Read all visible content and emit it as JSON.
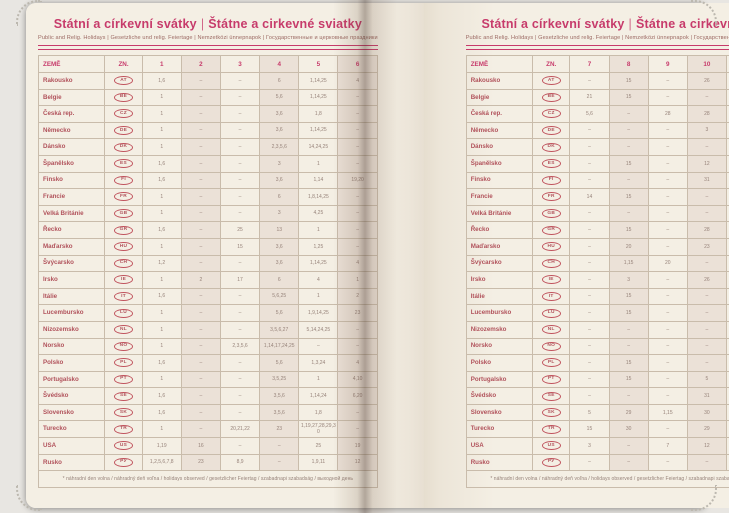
{
  "colors": {
    "accent": "#c73b6b",
    "country_text": "#b1525b",
    "value_text": "#97837a",
    "page_cream": "#f3eee3",
    "column_shade": "#ebe1d7"
  },
  "header": {
    "title_cs": "Státní a církevní svátky",
    "title_sk": "Štátne a cirkevné sviatky",
    "separator": "|",
    "subtitle": "Public and Relig. Holidays | Gesetzliche und relig. Feiertage | Nemzetközi ünnepnapok | Государственные и церковные праздники"
  },
  "table": {
    "col_country": "ZEMĚ",
    "col_code": "ZN.",
    "months_left": [
      "1",
      "2",
      "3",
      "4",
      "5",
      "6"
    ],
    "months_right": [
      "7",
      "8",
      "9",
      "10",
      "11",
      "12"
    ],
    "rows": [
      {
        "name": "Rakousko",
        "code": "AT",
        "m": [
          "1,6",
          "–",
          "–",
          "6",
          "1,14,25",
          "4",
          "–",
          "15",
          "–",
          "26",
          "1",
          "8,25,26"
        ]
      },
      {
        "name": "Belgie",
        "code": "BE",
        "m": [
          "1",
          "–",
          "–",
          "5,6",
          "1,14,25",
          "–",
          "21",
          "15",
          "–",
          "–",
          "1,11",
          "25"
        ]
      },
      {
        "name": "Česká rep.",
        "code": "CZ",
        "m": [
          "1",
          "–",
          "–",
          "3,6",
          "1,8",
          "–",
          "5,6",
          "–",
          "28",
          "28",
          "17",
          "24,25,26"
        ]
      },
      {
        "name": "Německo",
        "code": "DE",
        "m": [
          "1",
          "–",
          "–",
          "3,6",
          "1,14,25",
          "–",
          "–",
          "–",
          "–",
          "3",
          "–",
          "25,26"
        ]
      },
      {
        "name": "Dánsko",
        "code": "DK",
        "m": [
          "1",
          "–",
          "–",
          "2,3,5,6",
          "14,24,25",
          "–",
          "–",
          "–",
          "–",
          "–",
          "–",
          "25,26"
        ]
      },
      {
        "name": "Španělsko",
        "code": "ES",
        "m": [
          "1,6",
          "–",
          "–",
          "3",
          "1",
          "–",
          "–",
          "15",
          "–",
          "12",
          "1",
          "6,7,8,25"
        ]
      },
      {
        "name": "Finsko",
        "code": "FI",
        "m": [
          "1,6",
          "–",
          "–",
          "3,6",
          "1,14",
          "19,20",
          "–",
          "–",
          "–",
          "31",
          "–",
          "6,24,25,26"
        ]
      },
      {
        "name": "Francie",
        "code": "FR",
        "m": [
          "1",
          "–",
          "–",
          "6",
          "1,8,14,25",
          "–",
          "14",
          "15",
          "–",
          "–",
          "1,11",
          "25"
        ]
      },
      {
        "name": "Velká Británie",
        "code": "GB",
        "m": [
          "1",
          "–",
          "–",
          "3",
          "4,25",
          "–",
          "–",
          "–",
          "–",
          "–",
          "–",
          "25,26,28"
        ]
      },
      {
        "name": "Řecko",
        "code": "GR",
        "m": [
          "1,6",
          "–",
          "25",
          "13",
          "1",
          "–",
          "–",
          "15",
          "–",
          "28",
          "–",
          "25,26"
        ]
      },
      {
        "name": "Maďarsko",
        "code": "HU",
        "m": [
          "1",
          "–",
          "15",
          "3,6",
          "1,25",
          "–",
          "–",
          "20",
          "–",
          "23",
          "1",
          "25,26"
        ]
      },
      {
        "name": "Švýcarsko",
        "code": "CH",
        "m": [
          "1,2",
          "–",
          "–",
          "3,6",
          "1,14,25",
          "4",
          "–",
          "1,15",
          "20",
          "–",
          "1",
          "8,25,26"
        ]
      },
      {
        "name": "Irsko",
        "code": "IE",
        "m": [
          "1",
          "2",
          "17",
          "6",
          "4",
          "1",
          "–",
          "3",
          "–",
          "26",
          "–",
          "25,26"
        ]
      },
      {
        "name": "Itálie",
        "code": "IT",
        "m": [
          "1,6",
          "–",
          "–",
          "5,6,25",
          "1",
          "2",
          "–",
          "15",
          "–",
          "–",
          "1",
          "8,25,26"
        ]
      },
      {
        "name": "Lucembursko",
        "code": "LU",
        "m": [
          "1",
          "–",
          "–",
          "5,6",
          "1,9,14,25",
          "23",
          "–",
          "15",
          "–",
          "–",
          "1",
          "25,26"
        ]
      },
      {
        "name": "Nizozemsko",
        "code": "NL",
        "m": [
          "1",
          "–",
          "–",
          "3,5,6,27",
          "5,14,24,25",
          "–",
          "–",
          "–",
          "–",
          "–",
          "–",
          "25,26"
        ]
      },
      {
        "name": "Norsko",
        "code": "NO",
        "m": [
          "1",
          "–",
          "2,3,5,6",
          "1,14,17,24,25",
          "–",
          "–",
          "–",
          "–",
          "–",
          "–",
          "–",
          "25,26"
        ]
      },
      {
        "name": "Polsko",
        "code": "PL",
        "m": [
          "1,6",
          "–",
          "–",
          "5,6",
          "1,3,24",
          "4",
          "–",
          "15",
          "–",
          "–",
          "1,11",
          "25,26"
        ]
      },
      {
        "name": "Portugalsko",
        "code": "PT",
        "m": [
          "1",
          "–",
          "–",
          "3,5,25",
          "1",
          "4,10",
          "–",
          "15",
          "–",
          "5",
          "1",
          "1,8,25"
        ]
      },
      {
        "name": "Švédsko",
        "code": "SE",
        "m": [
          "1,6",
          "–",
          "–",
          "3,5,6",
          "1,14,24",
          "6,20",
          "–",
          "–",
          "–",
          "31",
          "–",
          "25,26"
        ]
      },
      {
        "name": "Slovensko",
        "code": "SK",
        "m": [
          "1,6",
          "–",
          "–",
          "3,5,6",
          "1,8",
          "–",
          "5",
          "29",
          "1,15",
          "30",
          "1,17",
          "24,25,26"
        ]
      },
      {
        "name": "Turecko",
        "code": "TR",
        "m": [
          "1",
          "–",
          "20,21,22",
          "23",
          "1,19,27,28,29,30",
          "–",
          "15",
          "30",
          "–",
          "29",
          "–",
          "–"
        ]
      },
      {
        "name": "USA",
        "code": "US",
        "m": [
          "1,19",
          "16",
          "–",
          "–",
          "25",
          "19",
          "3",
          "–",
          "7",
          "12",
          "11,26",
          "25"
        ]
      },
      {
        "name": "Rusko",
        "code": "РУ",
        "m": [
          "1,2,5,6,7,8",
          "23",
          "8,9",
          "–",
          "1,9,11",
          "12",
          "–",
          "–",
          "–",
          "–",
          "4",
          "–"
        ]
      }
    ]
  },
  "footnote": "* náhradní den volna / náhradný deň voľna / holidays observed / gesetzlicher Feiertag / szabadnapi szabadság / выходной день"
}
